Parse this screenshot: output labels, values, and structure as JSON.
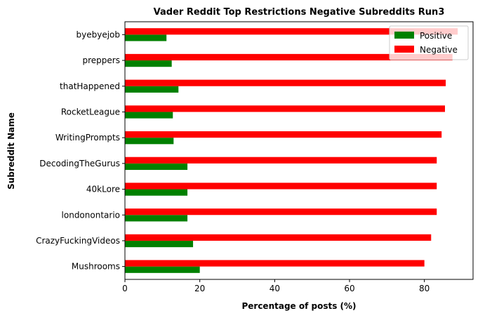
{
  "chart_data": {
    "type": "bar",
    "orientation": "horizontal",
    "title": "Vader Reddit Top Restrictions Negative Subreddits Run3",
    "xlabel": "Percentage of posts (%)",
    "ylabel": "Subreddit Name",
    "xlim": [
      0,
      93
    ],
    "xticks": [
      0,
      20,
      40,
      60,
      80
    ],
    "categories": [
      "Mushrooms",
      "CrazyFuckingVideos",
      "londonontario",
      "40kLore",
      "DecodingTheGurus",
      "WritingPrompts",
      "RocketLeague",
      "thatHappened",
      "preppers",
      "byebyejob"
    ],
    "series": [
      {
        "name": "Positive",
        "color": "#008000",
        "values": [
          20.0,
          18.2,
          16.7,
          16.7,
          16.7,
          13.0,
          12.8,
          14.3,
          12.5,
          11.1
        ]
      },
      {
        "name": "Negative",
        "color": "#ff0000",
        "values": [
          80.0,
          81.8,
          83.3,
          83.3,
          83.3,
          84.6,
          85.5,
          85.7,
          87.5,
          88.9
        ]
      }
    ],
    "legend": "upper-right",
    "grid": false
  }
}
